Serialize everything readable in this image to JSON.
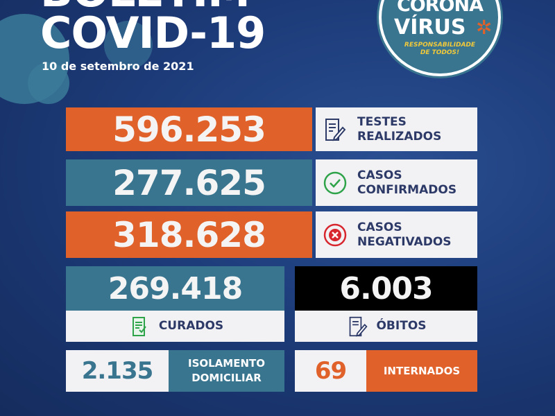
{
  "header": {
    "title_line1": "BOLETIM",
    "title_line2": "COVID-19",
    "date": "10 de setembro de 2021"
  },
  "seal": {
    "line1": "CORONA",
    "line2": "VÍRUS",
    "slogan1": "RESPONSABILIDADE",
    "slogan2": "DE TODOS!"
  },
  "stats": {
    "testes": {
      "value": "596.253",
      "label1": "TESTES",
      "label2": "REALIZADOS",
      "icon": "document-edit-icon"
    },
    "confirmados": {
      "value": "277.625",
      "label1": "CASOS",
      "label2": "CONFIRMADOS",
      "icon": "check-circle-icon"
    },
    "negativados": {
      "value": "318.628",
      "label1": "CASOS",
      "label2": "NEGATIVADOS",
      "icon": "x-circle-icon"
    },
    "curados": {
      "value": "269.418",
      "label": "CURADOS",
      "icon": "checked-document-icon"
    },
    "obitos": {
      "value": "6.003",
      "label": "ÓBITOS",
      "icon": "document-edit-icon"
    },
    "isolamento": {
      "value": "2.135",
      "label1": "ISOLAMENTO",
      "label2": "DOMICILIAR"
    },
    "internados": {
      "value": "69",
      "label": "INTERNADOS"
    }
  },
  "colors": {
    "orange": "#e0622a",
    "teal": "#3a7590",
    "background": "#1d3c7a",
    "dark_text": "#2d3a68"
  }
}
